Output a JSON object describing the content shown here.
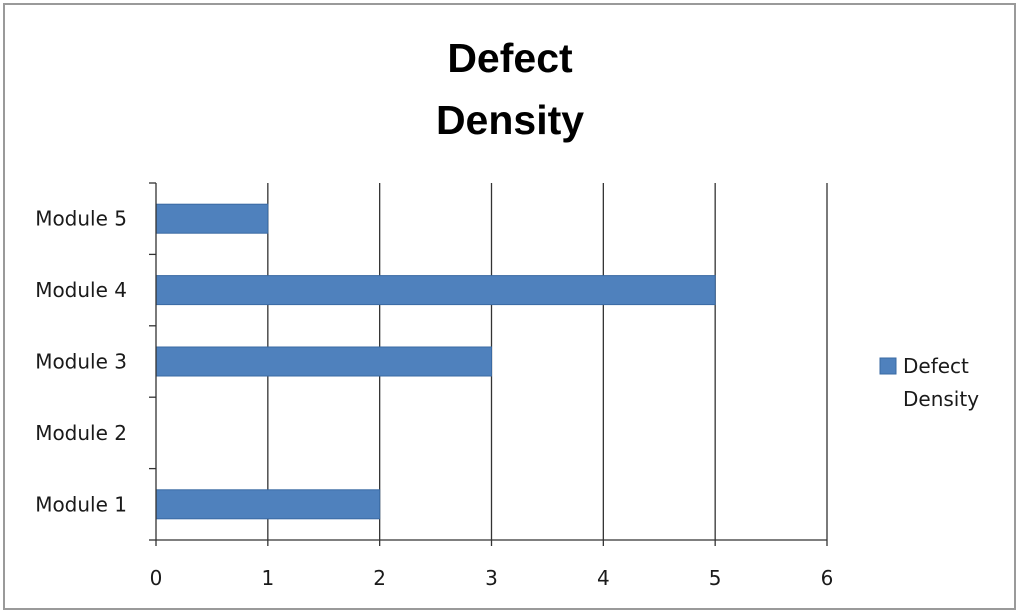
{
  "chart_data": {
    "type": "bar",
    "orientation": "horizontal",
    "title": "Defect Density",
    "title_lines": [
      "Defect",
      "Density"
    ],
    "categories": [
      "Module 1",
      "Module 2",
      "Module 3",
      "Module 4",
      "Module 5"
    ],
    "series": [
      {
        "name": "Defect Density",
        "name_lines": [
          "Defect",
          "Density"
        ],
        "values": [
          2,
          0,
          3,
          5,
          1
        ],
        "color": "#4f81bd"
      }
    ],
    "xlim": [
      0,
      6
    ],
    "xticks": [
      "0",
      "1",
      "2",
      "3",
      "4",
      "5",
      "6"
    ],
    "xlabel": "",
    "ylabel": "",
    "grid": "vertical major gridlines",
    "legend_position": "right"
  }
}
